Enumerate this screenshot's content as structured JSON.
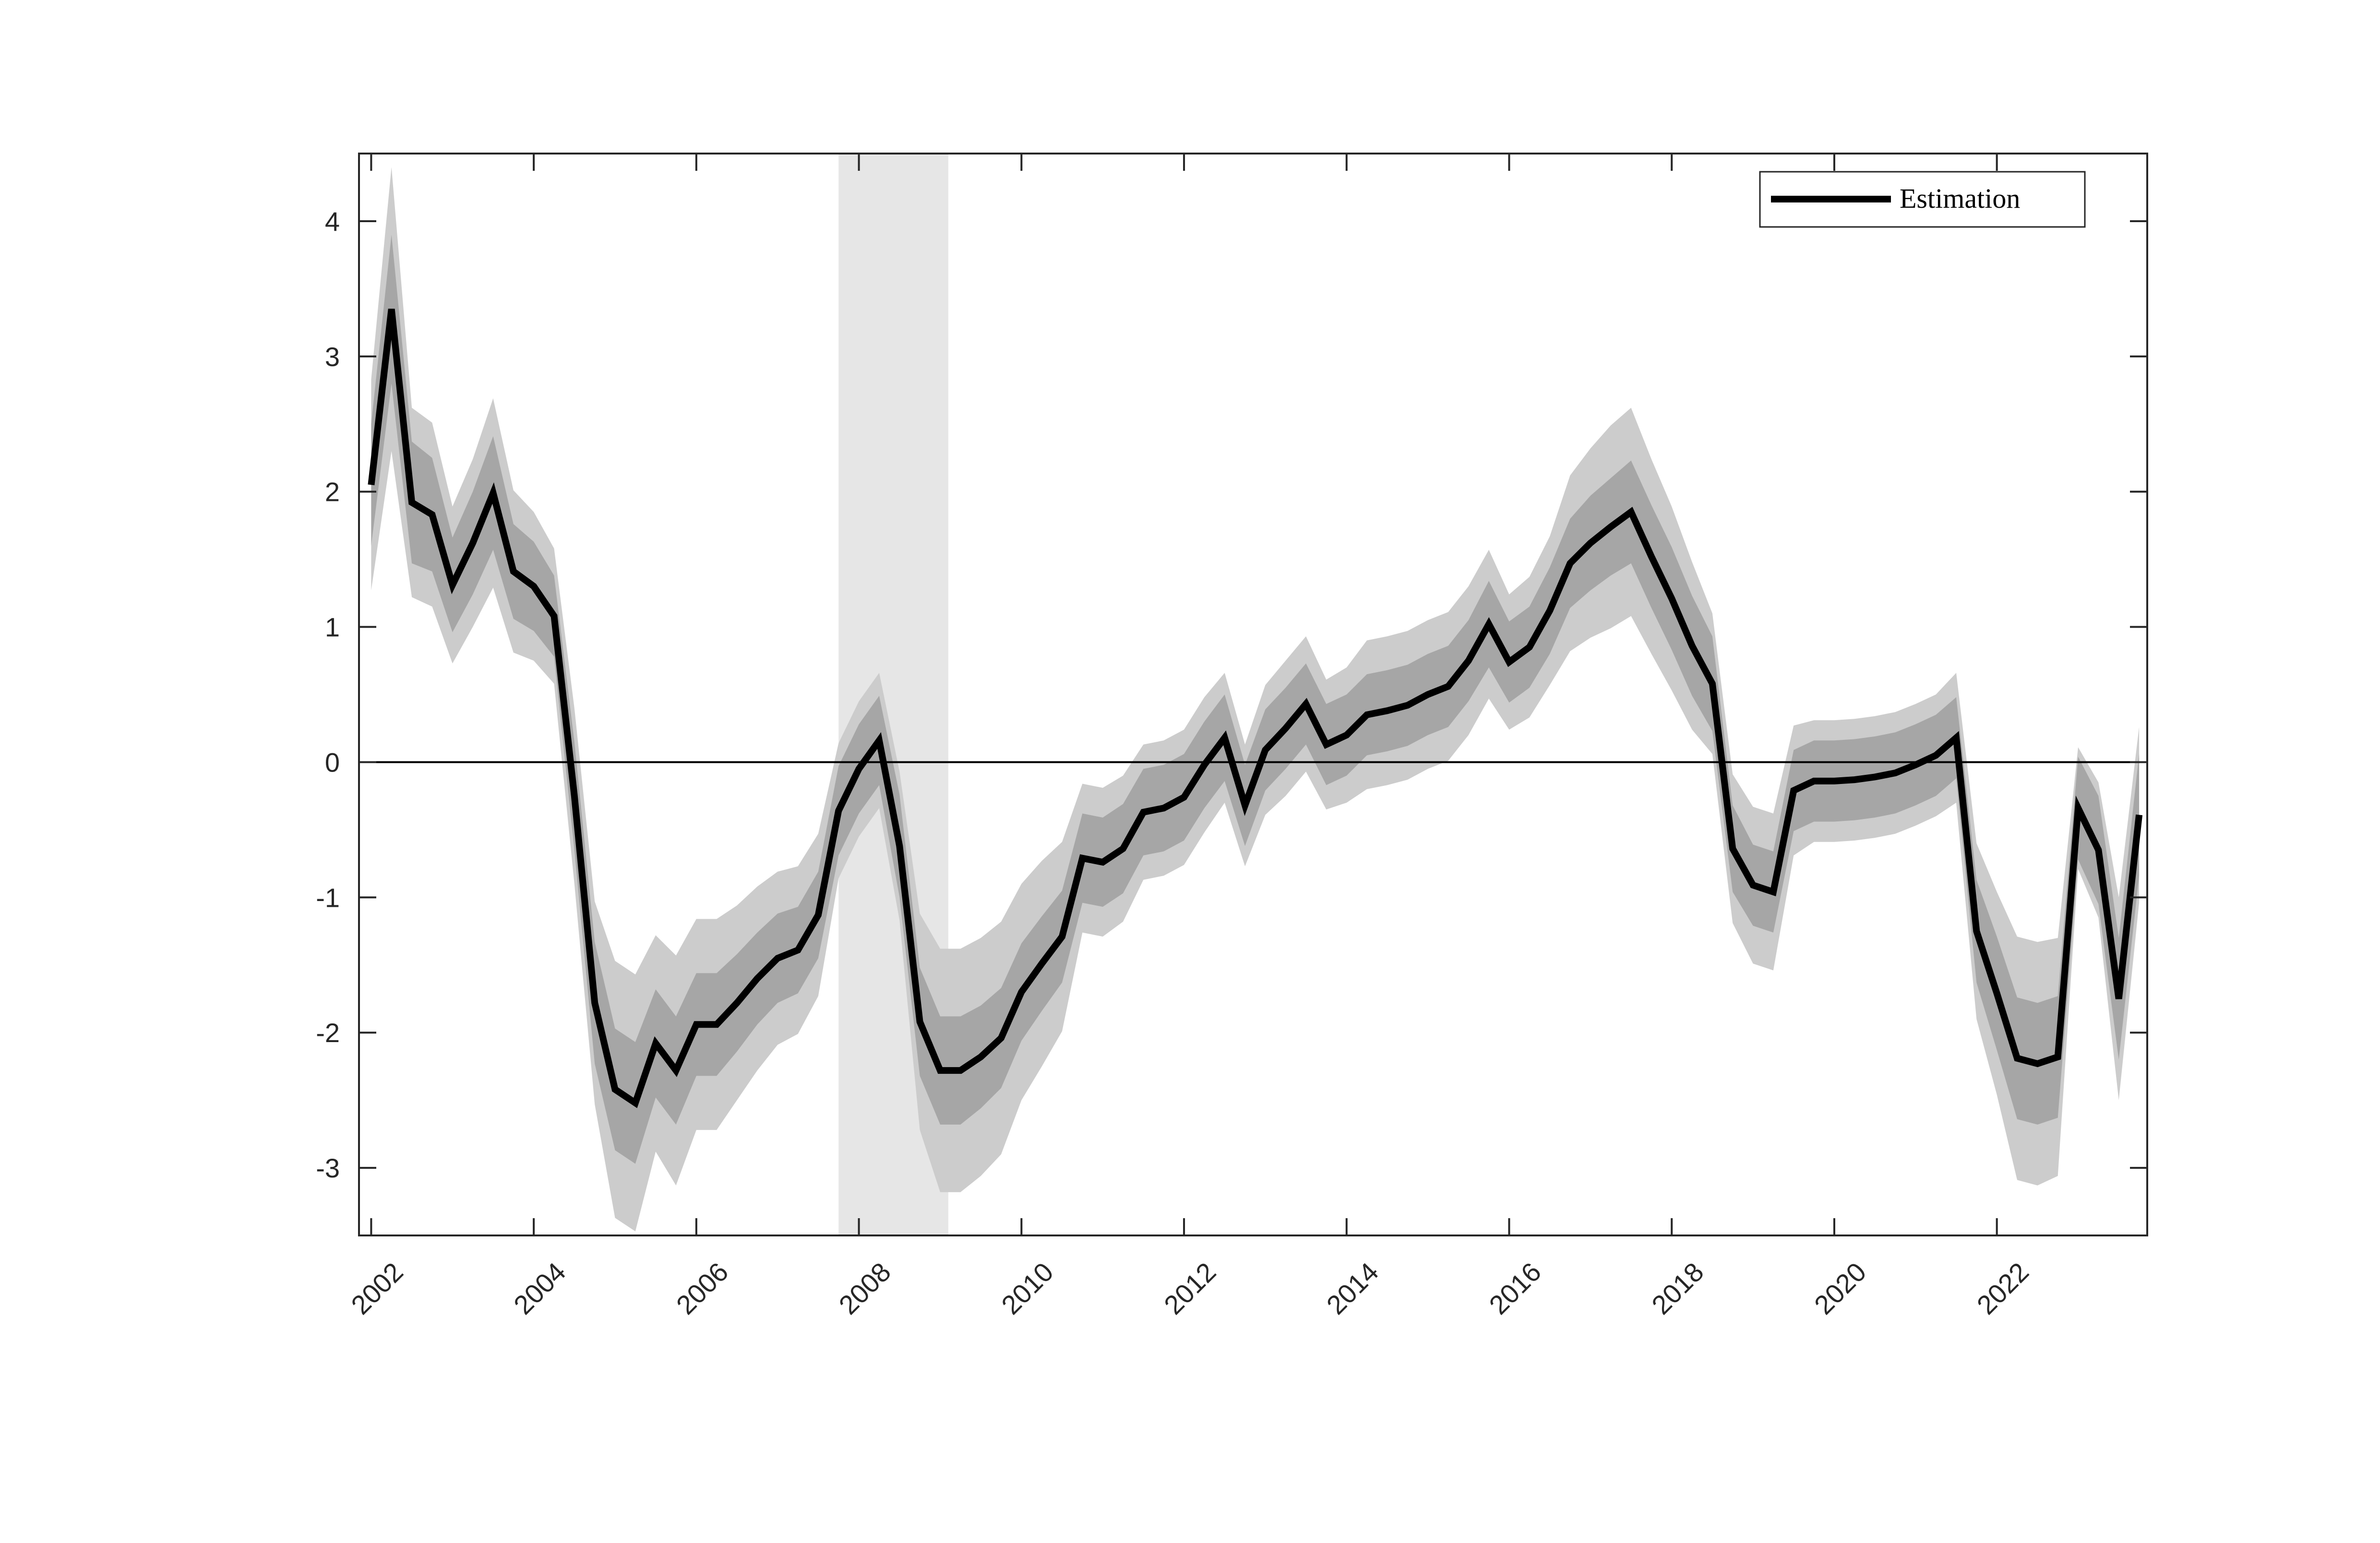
{
  "chart_data": {
    "type": "line",
    "title": "",
    "xlabel": "",
    "ylabel": "",
    "xlim": [
      2001.85,
      2023.85
    ],
    "ylim": [
      -3.5,
      4.5
    ],
    "yticks": [
      -3,
      -2,
      -1,
      0,
      1,
      2,
      3,
      4
    ],
    "yticklabels": [
      "-3",
      "-2",
      "-1",
      "0",
      "1",
      "2",
      "3",
      "4"
    ],
    "xticks": [
      2002,
      2004,
      2006,
      2008,
      2010,
      2012,
      2014,
      2016,
      2018,
      2020,
      2022
    ],
    "xticklabels": [
      "2002",
      "2004",
      "2006",
      "2008",
      "2010",
      "2012",
      "2014",
      "2016",
      "2018",
      "2020",
      "2022"
    ],
    "zero_line": 0,
    "grid": false,
    "legend": {
      "position": "top-right",
      "entries": [
        "Estimation"
      ]
    },
    "shaded_region": {
      "x_start": 2007.75,
      "x_end": 2009.1,
      "color": "#e6e6e6"
    },
    "colors": {
      "line": "#000000",
      "band_inner": "#a6a6a6",
      "band_outer": "#cccccc",
      "shade": "#e6e6e6"
    },
    "series": [
      {
        "name": "Estimation",
        "x": [
          2002.0,
          2002.25,
          2002.5,
          2002.75,
          2003.0,
          2003.25,
          2003.5,
          2003.75,
          2004.0,
          2004.25,
          2004.5,
          2004.75,
          2005.0,
          2005.25,
          2005.5,
          2005.75,
          2006.0,
          2006.25,
          2006.5,
          2006.75,
          2007.0,
          2007.25,
          2007.5,
          2007.75,
          2008.0,
          2008.25,
          2008.5,
          2008.75,
          2009.0,
          2009.25,
          2009.5,
          2009.75,
          2010.0,
          2010.25,
          2010.5,
          2010.75,
          2011.0,
          2011.25,
          2011.5,
          2011.75,
          2012.0,
          2012.25,
          2012.5,
          2012.75,
          2013.0,
          2013.25,
          2013.5,
          2013.75,
          2014.0,
          2014.25,
          2014.5,
          2014.75,
          2015.0,
          2015.25,
          2015.5,
          2015.75,
          2016.0,
          2016.25,
          2016.5,
          2016.75,
          2017.0,
          2017.25,
          2017.5,
          2017.75,
          2018.0,
          2018.25,
          2018.5,
          2018.75,
          2019.0,
          2019.25,
          2019.5,
          2019.75,
          2020.0,
          2020.25,
          2020.5,
          2020.75,
          2021.0,
          2021.25,
          2021.5,
          2021.75,
          2022.0,
          2022.25,
          2022.5,
          2022.75,
          2023.0,
          2023.25,
          2023.5,
          2023.75
        ],
        "values": [
          2.05,
          3.35,
          1.92,
          1.83,
          1.31,
          1.62,
          1.99,
          1.41,
          1.3,
          1.08,
          -0.25,
          -1.78,
          -2.42,
          -2.52,
          -2.08,
          -2.28,
          -1.94,
          -1.94,
          -1.78,
          -1.6,
          -1.45,
          -1.39,
          -1.13,
          -0.36,
          -0.05,
          0.16,
          -0.62,
          -1.92,
          -2.28,
          -2.28,
          -2.18,
          -2.04,
          -1.7,
          -1.49,
          -1.29,
          -0.71,
          -0.74,
          -0.64,
          -0.37,
          -0.34,
          -0.26,
          -0.02,
          0.18,
          -0.32,
          0.09,
          0.25,
          0.43,
          0.13,
          0.2,
          0.35,
          0.38,
          0.42,
          0.5,
          0.56,
          0.75,
          1.02,
          0.74,
          0.85,
          1.12,
          1.47,
          1.62,
          1.74,
          1.85,
          1.52,
          1.21,
          0.86,
          0.58,
          -0.64,
          -0.91,
          -0.96,
          -0.21,
          -0.14,
          -0.14,
          -0.13,
          -0.11,
          -0.08,
          -0.02,
          0.05,
          0.18,
          -1.25,
          -1.71,
          -2.19,
          -2.23,
          -2.18,
          -0.34,
          -0.65,
          -1.75,
          -0.39
        ],
        "band_inner_halfwidth": [
          0.45,
          0.55,
          0.45,
          0.42,
          0.35,
          0.38,
          0.42,
          0.35,
          0.33,
          0.3,
          0.4,
          0.45,
          0.45,
          0.45,
          0.4,
          0.4,
          0.38,
          0.38,
          0.36,
          0.34,
          0.33,
          0.32,
          0.32,
          0.33,
          0.33,
          0.33,
          0.38,
          0.4,
          0.4,
          0.4,
          0.38,
          0.37,
          0.36,
          0.35,
          0.34,
          0.33,
          0.33,
          0.33,
          0.32,
          0.32,
          0.32,
          0.32,
          0.32,
          0.3,
          0.3,
          0.3,
          0.3,
          0.3,
          0.3,
          0.3,
          0.3,
          0.3,
          0.3,
          0.3,
          0.3,
          0.32,
          0.3,
          0.3,
          0.32,
          0.33,
          0.35,
          0.36,
          0.38,
          0.38,
          0.38,
          0.37,
          0.35,
          0.32,
          0.3,
          0.3,
          0.3,
          0.3,
          0.3,
          0.3,
          0.3,
          0.3,
          0.3,
          0.3,
          0.3,
          0.38,
          0.42,
          0.45,
          0.45,
          0.45,
          0.38,
          0.4,
          0.45,
          0.45
        ],
        "band_outer_halfwidth": [
          0.78,
          1.05,
          0.7,
          0.68,
          0.58,
          0.62,
          0.7,
          0.6,
          0.55,
          0.5,
          0.65,
          0.75,
          0.95,
          0.95,
          0.8,
          0.85,
          0.78,
          0.78,
          0.72,
          0.68,
          0.64,
          0.62,
          0.6,
          0.5,
          0.5,
          0.5,
          0.55,
          0.8,
          0.9,
          0.9,
          0.88,
          0.86,
          0.8,
          0.76,
          0.7,
          0.55,
          0.55,
          0.54,
          0.5,
          0.5,
          0.5,
          0.5,
          0.48,
          0.45,
          0.48,
          0.5,
          0.5,
          0.48,
          0.5,
          0.55,
          0.55,
          0.55,
          0.55,
          0.55,
          0.55,
          0.55,
          0.5,
          0.52,
          0.55,
          0.65,
          0.7,
          0.75,
          0.77,
          0.72,
          0.68,
          0.62,
          0.52,
          0.55,
          0.58,
          0.58,
          0.48,
          0.45,
          0.45,
          0.45,
          0.45,
          0.45,
          0.45,
          0.45,
          0.48,
          0.65,
          0.75,
          0.9,
          0.9,
          0.88,
          0.45,
          0.5,
          0.75,
          0.65
        ]
      }
    ]
  }
}
